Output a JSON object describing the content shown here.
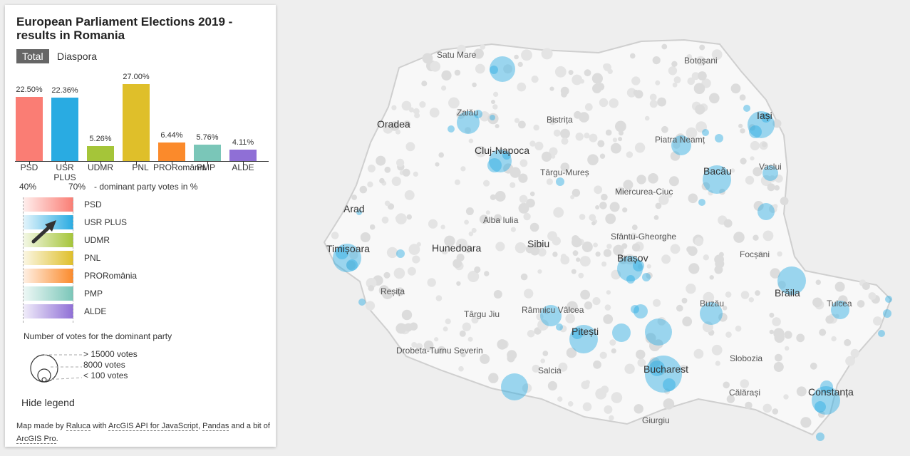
{
  "panel": {
    "title": "European Parliament Elections 2019 - results in Romania",
    "tabs": {
      "total": "Total",
      "diaspora": "Diaspora"
    },
    "hide_legend": "Hide legend"
  },
  "chart_data": {
    "type": "bar",
    "categories": [
      "PSD",
      "USR PLUS",
      "UDMR",
      "PNL",
      "PRORomânia",
      "PMP",
      "ALDE"
    ],
    "values": [
      22.5,
      22.36,
      5.26,
      27.0,
      6.44,
      5.76,
      4.11
    ],
    "value_labels": [
      "22.50%",
      "22.36%",
      "5.26%",
      "27.00%",
      "6.44%",
      "5.76%",
      "4.11%"
    ],
    "colors": [
      "#fa7d74",
      "#29abe2",
      "#a5c539",
      "#dfbf2a",
      "#fb8a2b",
      "#7ac6b8",
      "#8f6fd6"
    ],
    "ylim": [
      0,
      27
    ]
  },
  "legend": {
    "scale_min": "40%",
    "scale_max": "70%",
    "scale_caption": "- dominant party votes in %",
    "parties": [
      {
        "name": "PSD",
        "color": "#fa7d74"
      },
      {
        "name": "USR PLUS",
        "color": "#29abe2"
      },
      {
        "name": "UDMR",
        "color": "#a5c539"
      },
      {
        "name": "PNL",
        "color": "#dfbf2a"
      },
      {
        "name": "PRORomânia",
        "color": "#fb8a2b"
      },
      {
        "name": "PMP",
        "color": "#7ac6b8"
      },
      {
        "name": "ALDE",
        "color": "#8f6fd6"
      }
    ],
    "size_title": "Number of votes for the dominant party",
    "size_labels": [
      "> 15000 votes",
      "8000 votes",
      "< 100 votes"
    ]
  },
  "credit": {
    "prefix": "Map made by",
    "author": "Raluca",
    "with": "with",
    "api": "ArcGIS API for JavaScript",
    "comma": ",",
    "pandas": "Pandas",
    "and": "and a bit of",
    "pro": "ArcGIS Pro",
    "end": "."
  },
  "map": {
    "accent": "#29abe2",
    "cities_big": [
      "Oradea",
      "Cluj-Napoca",
      "Arad",
      "Timișoara",
      "Hunedoara",
      "Sibiu",
      "Brașov",
      "Bacău",
      "Iași",
      "Brăila",
      "Pitești",
      "Bucharest",
      "Constanța"
    ],
    "cities": [
      "Satu Mare",
      "Botoșani",
      "Zalău",
      "Bistrița",
      "Piatra Neamț",
      "Vaslui",
      "Târgu-Mureș",
      "Miercurea-Ciuc",
      "Alba Iulia",
      "Sfântu-Gheorghe",
      "Focșani",
      "Reșița",
      "Târgu Jiu",
      "Râmnicu Vâlcea",
      "Buzău",
      "Tulcea",
      "Drobeta-Turnu Severin",
      "Slobozia",
      "Salcia",
      "Călărași",
      "Giurgiu"
    ]
  }
}
